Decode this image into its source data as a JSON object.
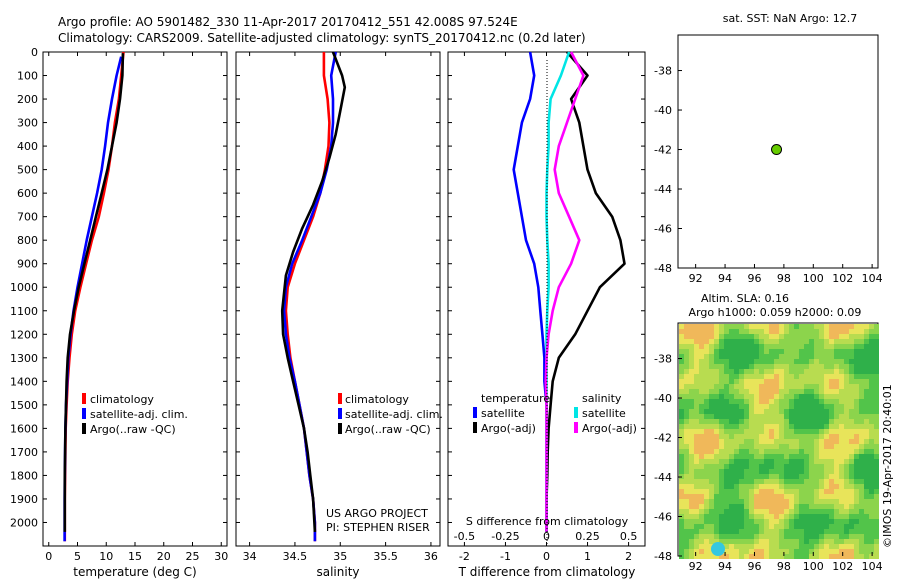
{
  "header": {
    "line1": "Argo profile: AO 5901482_330 11-Apr-2017 20170412_551 42.008S 97.524E",
    "line2": "Climatology: CARS2009. Satellite-adjusted climatology: synTS_20170412.nc (0.2d later)"
  },
  "colors": {
    "climatology": "#ff0000",
    "satellite": "#0000ff",
    "argo": "#000000",
    "sal_satellite": "#00e5e5",
    "sal_argo": "#ff00ff",
    "point": "#66cc00"
  },
  "chart_data": [
    {
      "type": "line",
      "id": "temperature",
      "xlabel": "temperature (deg C)",
      "ylabel": "",
      "xlim": [
        -1,
        31
      ],
      "ylim": [
        2100,
        0
      ],
      "xticks": [
        "0",
        "5",
        "10",
        "15",
        "20",
        "25",
        "30"
      ],
      "yticks": [
        "0",
        "100",
        "200",
        "300",
        "400",
        "500",
        "600",
        "700",
        "800",
        "900",
        "1000",
        "1100",
        "1200",
        "1300",
        "1400",
        "1500",
        "1600",
        "1700",
        "1800",
        "1900",
        "2000"
      ],
      "legend": [
        "climatology",
        "satellite-adj. clim.",
        "Argo(..raw -QC)"
      ],
      "series": [
        {
          "name": "climatology",
          "color": "#ff0000",
          "x": [
            13,
            12.6,
            12.2,
            11.5,
            11,
            10.4,
            9.6,
            8.7,
            7.5,
            6.5,
            5.5,
            4.6,
            4,
            3.6,
            3.3,
            3.1,
            2.95,
            2.9,
            2.85,
            2.8,
            2.8,
            2.8
          ],
          "y": [
            0,
            100,
            200,
            300,
            400,
            500,
            600,
            700,
            800,
            900,
            1000,
            1100,
            1200,
            1300,
            1400,
            1500,
            1600,
            1700,
            1800,
            1900,
            2000,
            2080
          ]
        },
        {
          "name": "satellite-adj. clim.",
          "color": "#0000ff",
          "x": [
            12.6,
            11.8,
            11,
            10.3,
            9.8,
            9.2,
            8.4,
            7.5,
            6.6,
            5.8,
            5,
            4.3,
            3.8,
            3.4,
            3.2,
            3,
            2.9,
            2.85,
            2.8,
            2.75,
            2.75,
            2.75
          ],
          "y": [
            20,
            100,
            200,
            300,
            400,
            500,
            600,
            700,
            800,
            900,
            1000,
            1100,
            1200,
            1300,
            1400,
            1500,
            1600,
            1700,
            1800,
            1900,
            2000,
            2080
          ]
        },
        {
          "name": "Argo(..raw -QC)",
          "color": "#000000",
          "x": [
            12.9,
            12.8,
            12.4,
            11.8,
            11,
            10.2,
            9.2,
            8.2,
            7.2,
            6.2,
            5.2,
            4.4,
            3.7,
            3.3,
            3.1,
            3,
            2.9,
            2.85,
            2.8,
            2.8,
            2.8
          ],
          "y": [
            5,
            100,
            200,
            300,
            400,
            500,
            600,
            700,
            800,
            900,
            1000,
            1100,
            1200,
            1300,
            1400,
            1500,
            1600,
            1700,
            1800,
            1900,
            2040
          ]
        }
      ]
    },
    {
      "type": "line",
      "id": "salinity",
      "xlabel": "salinity",
      "xlim": [
        33.85,
        36.1
      ],
      "ylim": [
        2100,
        0
      ],
      "xticks": [
        "34",
        "34.5",
        "35",
        "35.5",
        "36"
      ],
      "legend": [
        "climatology",
        "satellite-adj. clim.",
        "Argo(..raw -QC)"
      ],
      "series": [
        {
          "name": "climatology",
          "color": "#ff0000",
          "x": [
            34.82,
            34.82,
            34.86,
            34.88,
            34.87,
            34.83,
            34.78,
            34.7,
            34.6,
            34.5,
            34.42,
            34.4,
            34.42,
            34.45,
            34.5,
            34.55,
            34.6,
            34.63,
            34.66,
            34.7,
            34.72,
            34.72
          ],
          "y": [
            0,
            100,
            200,
            300,
            400,
            500,
            600,
            700,
            800,
            900,
            1000,
            1100,
            1200,
            1300,
            1400,
            1500,
            1600,
            1700,
            1800,
            1900,
            2000,
            2080
          ]
        },
        {
          "name": "satellite-adj. clim.",
          "color": "#0000ff",
          "x": [
            34.95,
            34.9,
            34.92,
            34.92,
            34.9,
            34.85,
            34.78,
            34.68,
            34.58,
            34.47,
            34.4,
            34.38,
            34.4,
            34.44,
            34.5,
            34.55,
            34.6,
            34.63,
            34.66,
            34.7,
            34.72,
            34.72
          ],
          "y": [
            0,
            100,
            200,
            300,
            400,
            500,
            600,
            700,
            800,
            900,
            1000,
            1100,
            1200,
            1300,
            1400,
            1500,
            1600,
            1700,
            1800,
            1900,
            2000,
            2080
          ]
        },
        {
          "name": "Argo(..raw -QC)",
          "color": "#000000",
          "x": [
            34.92,
            35.02,
            35.05,
            35.0,
            34.95,
            34.88,
            34.8,
            34.7,
            34.58,
            34.48,
            34.4,
            34.36,
            34.37,
            34.42,
            34.48,
            34.54,
            34.6,
            34.64,
            34.67,
            34.7,
            34.72
          ],
          "y": [
            0,
            100,
            150,
            250,
            350,
            450,
            550,
            650,
            750,
            850,
            950,
            1100,
            1200,
            1300,
            1400,
            1500,
            1600,
            1700,
            1800,
            1900,
            2040
          ]
        }
      ]
    },
    {
      "type": "line",
      "id": "difference",
      "xlabel": "T difference from climatology",
      "title_bottom": "S difference from climatology",
      "xlim": [
        -2.4,
        2.4
      ],
      "ylim": [
        2100,
        0
      ],
      "xticks": [
        "-2",
        "-1",
        "0",
        "1",
        "2"
      ],
      "top_ticks": [
        "-0.5",
        "-0.25",
        "0",
        "0.25",
        "0.5"
      ],
      "legend_temperature_title": "temperature",
      "legend_salinity_title": "salinity",
      "legend": [
        "satellite",
        "Argo(-adj)",
        "satellite",
        "Argo(-adj)"
      ],
      "series": [
        {
          "name": "satellite",
          "color": "#0000ff",
          "x": [
            -0.4,
            -0.3,
            -0.4,
            -0.6,
            -0.7,
            -0.8,
            -0.7,
            -0.6,
            -0.5,
            -0.3,
            -0.2,
            -0.15,
            -0.1,
            -0.05,
            -0.05,
            0,
            0,
            0,
            0,
            0,
            0
          ],
          "y": [
            0,
            100,
            200,
            300,
            400,
            500,
            600,
            700,
            800,
            900,
            1000,
            1100,
            1200,
            1300,
            1400,
            1500,
            1600,
            1700,
            1800,
            1900,
            2040
          ]
        },
        {
          "name": "Argo(-adj)",
          "color": "#000000",
          "x": [
            0.5,
            1.0,
            0.6,
            0.8,
            0.9,
            1.0,
            1.2,
            1.6,
            1.8,
            1.9,
            1.3,
            1.0,
            0.7,
            0.3,
            0.15,
            0.1,
            0.05,
            0.03,
            0.02,
            0,
            0
          ],
          "y": [
            0,
            100,
            200,
            300,
            400,
            500,
            600,
            700,
            800,
            900,
            1000,
            1100,
            1200,
            1300,
            1400,
            1500,
            1600,
            1700,
            1800,
            1900,
            2040
          ]
        },
        {
          "name": "satellite",
          "color": "#00e5e5",
          "x": [
            0.55,
            0.35,
            0.1,
            0.05,
            0.05,
            0.02,
            0,
            0,
            0.02,
            0.05,
            0.05,
            0.02,
            0,
            0,
            0,
            0,
            0,
            0,
            0,
            0,
            0
          ],
          "y": [
            0,
            100,
            200,
            300,
            400,
            500,
            600,
            700,
            800,
            900,
            1000,
            1100,
            1200,
            1300,
            1400,
            1500,
            1600,
            1700,
            1800,
            1900,
            2040
          ]
        },
        {
          "name": "Argo(-adj)",
          "color": "#ff00ff",
          "x": [
            0.6,
            0.9,
            0.7,
            0.5,
            0.3,
            0.2,
            0.3,
            0.55,
            0.8,
            0.6,
            0.3,
            0.15,
            0.05,
            0,
            -0.02,
            0,
            0,
            0,
            0,
            0,
            0
          ],
          "y": [
            0,
            100,
            200,
            300,
            400,
            500,
            600,
            700,
            800,
            900,
            1000,
            1100,
            1200,
            1300,
            1400,
            1500,
            1600,
            1700,
            1800,
            1900,
            2040
          ]
        }
      ]
    },
    {
      "type": "scatter",
      "id": "location",
      "title": "sat. SST: NaN Argo: 12.7",
      "xlim": [
        90.8,
        104.4
      ],
      "ylim": [
        -48,
        -36.2
      ],
      "xticks": [
        "92",
        "94",
        "96",
        "98",
        "100",
        "102",
        "104"
      ],
      "yticks": [
        "-38",
        "-40",
        "-42",
        "-44",
        "-46",
        "-48"
      ],
      "points": [
        {
          "x": 97.5,
          "y": -42.0
        }
      ]
    },
    {
      "type": "heatmap",
      "id": "sla",
      "title1": "Altim. SLA: 0.16",
      "title2": "Argo h1000: 0.059 h2000: 0.09",
      "xlim": [
        90.8,
        104.4
      ],
      "ylim": [
        -48,
        -36.2
      ],
      "xticks": [
        "92",
        "94",
        "96",
        "98",
        "100",
        "102",
        "104"
      ],
      "yticks": [
        "-38",
        "-40",
        "-42",
        "-44",
        "-46",
        "-48"
      ]
    }
  ],
  "side_text": "©IMOS 19-Apr-2017 20:40:01",
  "credit1": "US ARGO PROJECT",
  "credit2": "PI: STEPHEN RISER"
}
